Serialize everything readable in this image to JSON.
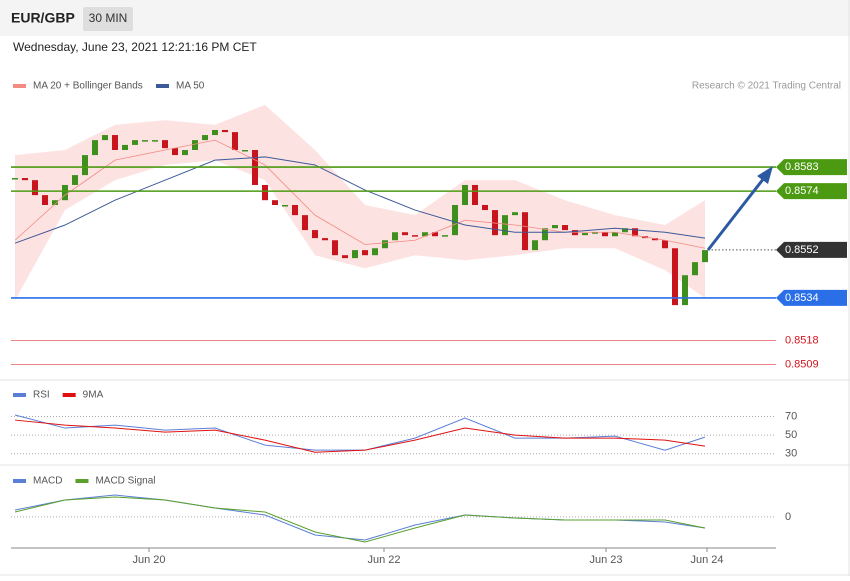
{
  "header": {
    "symbol": "EUR/GBP",
    "timeframe": "30 MIN",
    "timestamp": "Wednesday, June 23, 2021 12:21:16 PM CET"
  },
  "chart_data": [
    {
      "type": "candlestick",
      "credit": "Research © 2021 Trading Central",
      "xlim": [
        -0.4,
        76.1
      ],
      "xticks": [
        {
          "value": 13.4,
          "label": "Jun 20"
        },
        {
          "value": 36.9,
          "label": "Jun 22"
        },
        {
          "value": 59.1,
          "label": "Jun 23"
        },
        {
          "value": 69.2,
          "label": "Jun 24"
        }
      ],
      "ylim": [
        0.8504,
        0.861
      ],
      "up_color": "#3f8f1f",
      "down_color": "#c8141c",
      "closes": [
        0.85789,
        0.85781,
        0.85725,
        0.85688,
        0.85706,
        0.85763,
        0.858,
        0.85875,
        0.85931,
        0.8595,
        0.85894,
        0.85913,
        0.85931,
        0.85931,
        0.85931,
        0.85901,
        0.85875,
        0.85894,
        0.85931,
        0.8595,
        0.85969,
        0.85961,
        0.85894,
        0.85894,
        0.85763,
        0.85706,
        0.85688,
        0.85688,
        0.8565,
        0.85594,
        0.85564,
        0.85556,
        0.855,
        0.85489,
        0.85519,
        0.855,
        0.85526,
        0.85556,
        0.85586,
        0.85575,
        0.85571,
        0.85586,
        0.85571,
        0.85575,
        0.85688,
        0.85763,
        0.85688,
        0.85669,
        0.85575,
        0.8565,
        0.85661,
        0.85519,
        0.85556,
        0.85601,
        0.85613,
        0.85594,
        0.85575,
        0.85583,
        0.85586,
        0.85571,
        0.85586,
        0.85601,
        0.85571,
        0.85564,
        0.85556,
        0.85526,
        0.85313,
        0.85425,
        0.85474,
        0.85519
      ],
      "overlays": {
        "x": [
          0,
          5,
          10,
          15,
          20,
          25,
          30,
          35,
          40,
          45,
          50,
          55,
          60,
          65,
          69
        ],
        "series": [
          {
            "name": "MA 20 + Bollinger Bands",
            "color": "#f28b82",
            "band_color": "#fde2e2",
            "upper": [
              0.85875,
              0.85894,
              0.85988,
              0.86006,
              0.85988,
              0.86063,
              0.85894,
              0.85688,
              0.8565,
              0.85781,
              0.85781,
              0.85706,
              0.8565,
              0.85613,
              0.85706
            ],
            "lower": [
              0.85331,
              0.85669,
              0.85781,
              0.85838,
              0.85856,
              0.85781,
              0.855,
              0.85451,
              0.855,
              0.85481,
              0.855,
              0.85526,
              0.85526,
              0.85444,
              0.85339
            ],
            "values": [
              0.85556,
              0.85725,
              0.85856,
              0.85894,
              0.85931,
              0.85838,
              0.8565,
              0.8554,
              0.85556,
              0.85631,
              0.85613,
              0.85586,
              0.85586,
              0.85556,
              0.85526
            ]
          },
          {
            "name": "MA 50",
            "color": "#3d5a98",
            "values": [
              0.85545,
              0.85613,
              0.85706,
              0.85781,
              0.85856,
              0.85868,
              0.85838,
              0.85744,
              0.85669,
              0.85613,
              0.85586,
              0.85586,
              0.85601,
              0.85586,
              0.85564
            ]
          }
        ]
      },
      "levels": [
        {
          "value": 0.8583,
          "color": "#4c9a12",
          "style": "badge",
          "line": "solid"
        },
        {
          "value": 0.8574,
          "color": "#4c9a12",
          "style": "badge",
          "line": "solid"
        },
        {
          "value": 0.8552,
          "color": "#333333",
          "style": "badge",
          "line": "dotted"
        },
        {
          "value": 0.8534,
          "color": "#2a6ee8",
          "style": "badge",
          "line": "solid"
        },
        {
          "value": 0.8518,
          "color": "#d0161d",
          "style": "text",
          "line": "thin"
        },
        {
          "value": 0.8509,
          "color": "#d0161d",
          "style": "text",
          "line": "thin"
        }
      ]
    },
    {
      "type": "line",
      "x": [
        0,
        5,
        10,
        15,
        20,
        25,
        30,
        35,
        40,
        45,
        50,
        55,
        60,
        65,
        69
      ],
      "xlim": [
        -0.4,
        76.1
      ],
      "ylim": [
        20,
        105
      ],
      "yticks": [
        30,
        50,
        70
      ],
      "series": [
        {
          "name": "RSI",
          "color": "#5b7fd6",
          "values": [
            71.6,
            57.6,
            60.8,
            55.4,
            57.6,
            39.2,
            33.8,
            33.8,
            46.8,
            68.4,
            46.8,
            46.8,
            48.9,
            33.8,
            47.8
          ]
        },
        {
          "name": "9MA",
          "color": "#e01010",
          "values": [
            66.2,
            60.8,
            57.6,
            53.2,
            55.4,
            44.6,
            31.6,
            33.8,
            44.6,
            57.6,
            50,
            46.8,
            46.8,
            44.6,
            38.1
          ]
        }
      ]
    },
    {
      "type": "line",
      "x": [
        0,
        5,
        10,
        15,
        20,
        25,
        30,
        35,
        40,
        45,
        50,
        55,
        60,
        65,
        69
      ],
      "xlim": [
        -0.4,
        76.1
      ],
      "ylim": [
        -3,
        5
      ],
      "yticks": [
        0
      ],
      "series": [
        {
          "name": "MACD",
          "color": "#5b7fd6",
          "values": [
            0.73,
            1.8,
            2.33,
            1.8,
            0.95,
            0.2,
            -1.93,
            -2.47,
            -0.87,
            0.2,
            -0.12,
            -0.33,
            -0.33,
            -0.55,
            -1.19
          ]
        },
        {
          "name": "MACD Signal",
          "color": "#5aa02c",
          "values": [
            0.52,
            1.8,
            2.12,
            1.8,
            0.95,
            0.52,
            -1.61,
            -2.68,
            -1.19,
            0.2,
            -0.12,
            -0.33,
            -0.33,
            -0.33,
            -1.19
          ]
        }
      ]
    }
  ]
}
